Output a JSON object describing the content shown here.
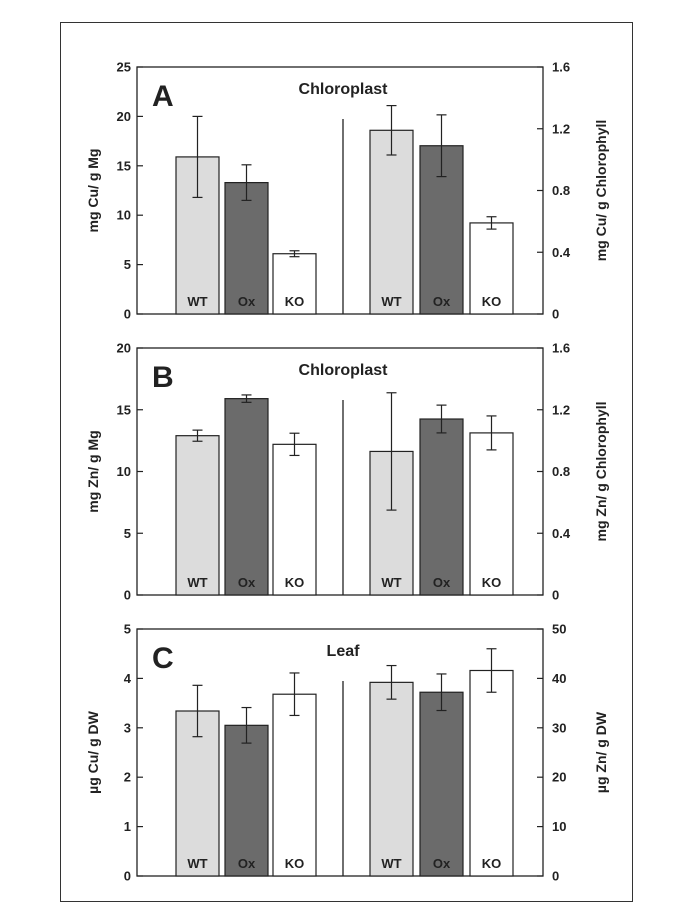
{
  "colors": {
    "WT": "#dcdcdc",
    "Ox": "#6b6b6b",
    "KO": "#ffffff",
    "axis": "#222222",
    "frame": "#333333"
  },
  "chart_data": [
    {
      "type": "bar",
      "panel_letter": "A",
      "title": "Chloroplast",
      "ylabel_left": "mg Cu/ g Mg",
      "ylabel_right": "mg Cu/ g Chlorophyll",
      "ylim_left": [
        0,
        25
      ],
      "yticks_left": [
        "0",
        "5",
        "10",
        "15",
        "20",
        "25"
      ],
      "ylim_right": [
        0,
        1.6
      ],
      "yticks_right": [
        "0",
        "0.4",
        "0.8",
        "1.2",
        "1.6"
      ],
      "groups": [
        {
          "axis": "left",
          "categories": [
            "WT",
            "Ox",
            "KO"
          ],
          "values": [
            15.9,
            13.3,
            6.1
          ],
          "errors": [
            4.1,
            1.8,
            0.3
          ]
        },
        {
          "axis": "right",
          "categories": [
            "WT",
            "Ox",
            "KO"
          ],
          "values": [
            1.19,
            1.09,
            0.59
          ],
          "errors": [
            0.16,
            0.2,
            0.04
          ]
        }
      ]
    },
    {
      "type": "bar",
      "panel_letter": "B",
      "title": "Chloroplast",
      "ylabel_left": "mg Zn/ g Mg",
      "ylabel_right": "mg Zn/ g Chlorophyll",
      "ylim_left": [
        0,
        20
      ],
      "yticks_left": [
        "0",
        "5",
        "10",
        "15",
        "20"
      ],
      "ylim_right": [
        0,
        1.6
      ],
      "yticks_right": [
        "0",
        "0.4",
        "0.8",
        "1.2",
        "1.6"
      ],
      "groups": [
        {
          "axis": "left",
          "categories": [
            "WT",
            "Ox",
            "KO"
          ],
          "values": [
            12.9,
            15.9,
            12.2
          ],
          "errors": [
            0.45,
            0.3,
            0.9
          ]
        },
        {
          "axis": "right",
          "categories": [
            "WT",
            "Ox",
            "KO"
          ],
          "values": [
            0.93,
            1.14,
            1.05
          ],
          "errors": [
            0.38,
            0.09,
            0.11
          ]
        }
      ]
    },
    {
      "type": "bar",
      "panel_letter": "C",
      "title": "Leaf",
      "ylabel_left": "µg Cu/ g DW",
      "ylabel_right": "µg Zn/ g DW",
      "ylim_left": [
        0,
        5
      ],
      "yticks_left": [
        "0",
        "1",
        "2",
        "3",
        "4",
        "5"
      ],
      "ylim_right": [
        0,
        50
      ],
      "yticks_right": [
        "0",
        "10",
        "20",
        "30",
        "40",
        "50"
      ],
      "groups": [
        {
          "axis": "left",
          "categories": [
            "WT",
            "Ox",
            "KO"
          ],
          "values": [
            3.34,
            3.05,
            3.68
          ],
          "errors": [
            0.52,
            0.36,
            0.43
          ]
        },
        {
          "axis": "right",
          "categories": [
            "WT",
            "Ox",
            "KO"
          ],
          "values": [
            39.2,
            37.2,
            41.6
          ],
          "errors": [
            3.4,
            3.7,
            4.4
          ]
        }
      ]
    }
  ]
}
